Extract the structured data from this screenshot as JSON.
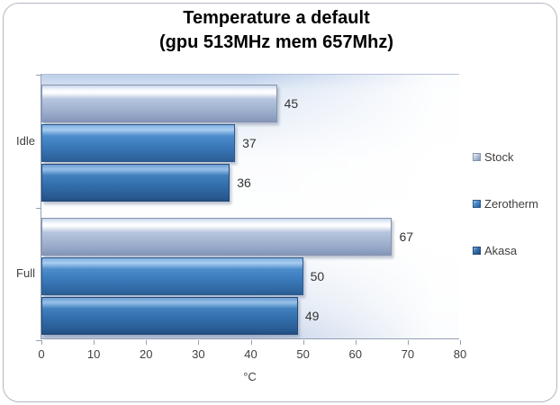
{
  "title": {
    "line1": "Temperature a default",
    "line2": "(gpu 513MHz mem 657Mhz)"
  },
  "chart_data": {
    "type": "bar",
    "orientation": "horizontal",
    "title": "Temperature a default (gpu 513MHz mem 657Mhz)",
    "categories": [
      "Idle",
      "Full"
    ],
    "series": [
      {
        "name": "Stock",
        "values": [
          45,
          67
        ],
        "color": "#a6b7d3"
      },
      {
        "name": "Zerotherm",
        "values": [
          37,
          50
        ],
        "color": "#3d7cbd"
      },
      {
        "name": "Akasa",
        "values": [
          36,
          49
        ],
        "color": "#336fad"
      }
    ],
    "xlabel": "°C",
    "xlim": [
      0,
      80
    ],
    "x_ticks": [
      0,
      10,
      20,
      30,
      40,
      50,
      60,
      70,
      80
    ],
    "value_labels": true,
    "legend_position": "right",
    "grid": false
  }
}
